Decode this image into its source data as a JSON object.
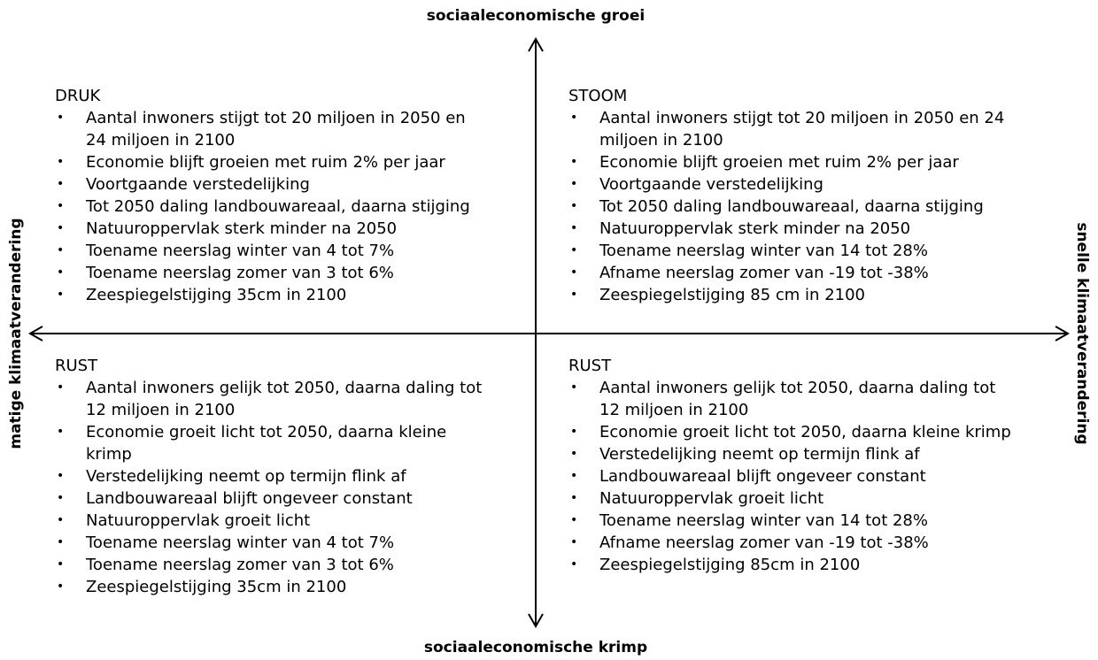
{
  "axes": {
    "top": "sociaaleconomische groei",
    "bottom": "sociaaleconomische krimp",
    "left": "matige klimaatverandering",
    "right": "snelle klimaatverandering"
  },
  "quadrants": [
    {
      "title": "DRUK",
      "items": [
        "Aantal inwoners stijgt tot 20 miljoen in 2050 en 24 miljoen in 2100",
        "Economie blijft groeien met ruim 2% per jaar",
        "Voortgaande verstedelijking",
        "Tot 2050 daling landbouwareaal, daarna stijging",
        "Natuuroppervlak sterk minder na 2050",
        "Toename neerslag winter van 4 tot 7%",
        "Toename neerslag zomer van 3 tot 6%",
        "Zeespiegelstijging 35cm in 2100"
      ]
    },
    {
      "title": "STOOM",
      "items": [
        "Aantal inwoners stijgt tot 20 miljoen in 2050 en 24 miljoen in 2100",
        "Economie blijft groeien met ruim 2% per jaar",
        "Voortgaande verstedelijking",
        "Tot 2050 daling landbouwareaal, daarna stijging",
        "Natuuroppervlak sterk minder na 2050",
        "Toename neerslag winter van 14 tot 28%",
        "Afname neerslag zomer van -19 tot -38%",
        "Zeespiegelstijging 85 cm in 2100"
      ]
    },
    {
      "title": "RUST",
      "items": [
        "Aantal inwoners gelijk tot 2050, daarna daling tot 12 miljoen in 2100",
        "Economie groeit licht tot 2050, daarna kleine krimp",
        "Verstedelijking neemt op termijn flink af",
        "Landbouwareaal blijft ongeveer constant",
        "Natuuroppervlak groeit licht",
        "Toename neerslag winter van 4 tot 7%",
        "Toename neerslag zomer van 3 tot 6%",
        "Zeespiegelstijging 35cm in 2100"
      ]
    },
    {
      "title": "RUST",
      "items": [
        "Aantal inwoners gelijk tot 2050, daarna daling tot 12 miljoen in 2100",
        "Economie groeit licht tot 2050, daarna kleine krimp",
        "Verstedelijking neemt op termijn flink af",
        "Landbouwareaal blijft ongeveer constant",
        "Natuuroppervlak groeit licht",
        "Toename neerslag winter van 14 tot 28%",
        "Afname neerslag zomer van -19 tot -38%",
        "Zeespiegelstijging 85cm in 2100"
      ]
    }
  ]
}
